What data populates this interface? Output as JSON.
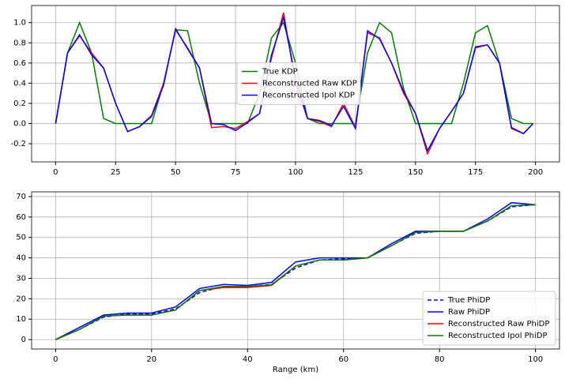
{
  "chart_data": [
    {
      "type": "line",
      "legend": "center",
      "grid": true,
      "xlim": [
        -10,
        210
      ],
      "xticks": [
        0,
        25,
        50,
        75,
        100,
        125,
        150,
        175,
        200
      ],
      "ylim": [
        -0.38,
        1.17
      ],
      "yticks": [
        -0.2,
        0.0,
        0.2,
        0.4,
        0.6,
        0.8,
        1.0
      ],
      "x": [
        0,
        5,
        10,
        15,
        20,
        25,
        30,
        35,
        40,
        45,
        50,
        55,
        60,
        65,
        70,
        75,
        80,
        85,
        90,
        95,
        100,
        105,
        110,
        115,
        120,
        125,
        130,
        135,
        140,
        145,
        150,
        155,
        160,
        165,
        170,
        175,
        180,
        185,
        190,
        195,
        199
      ],
      "series": [
        {
          "name": "True KDP",
          "color": "#008000",
          "values": [
            0,
            0.7,
            1.0,
            0.7,
            0.05,
            0,
            0,
            0,
            0,
            0.4,
            0.93,
            0.92,
            0.4,
            0,
            0,
            0,
            0,
            0.3,
            0.85,
            1.0,
            0.6,
            0.05,
            0,
            0,
            0,
            0,
            0.7,
            1.0,
            0.9,
            0.35,
            0,
            0,
            0,
            0,
            0.4,
            0.9,
            0.97,
            0.6,
            0.05,
            0,
            0
          ]
        },
        {
          "name": "Reconstructed Raw KDP",
          "color": "#ff0000",
          "values": [
            0,
            0.7,
            0.87,
            0.7,
            0.55,
            0.2,
            -0.08,
            -0.03,
            0.08,
            0.4,
            0.93,
            0.75,
            0.55,
            -0.04,
            -0.03,
            -0.05,
            0.02,
            0.1,
            0.65,
            1.1,
            0.4,
            0.05,
            0.02,
            -0.03,
            0.2,
            -0.04,
            0.9,
            0.85,
            0.6,
            0.3,
            0.1,
            -0.3,
            -0.05,
            0.12,
            0.3,
            0.75,
            0.78,
            0.6,
            -0.05,
            -0.1,
            0
          ]
        },
        {
          "name": "Reconstructed Ipol KDP",
          "color": "#0000ff",
          "values": [
            0,
            0.7,
            0.88,
            0.68,
            0.55,
            0.2,
            -0.08,
            -0.03,
            0.07,
            0.38,
            0.94,
            0.74,
            0.55,
            0.0,
            -0.01,
            -0.07,
            0.01,
            0.1,
            0.68,
            1.05,
            0.45,
            0.05,
            0.03,
            -0.02,
            0.17,
            -0.05,
            0.92,
            0.84,
            0.6,
            0.32,
            0.1,
            -0.27,
            -0.05,
            0.12,
            0.3,
            0.76,
            0.78,
            0.6,
            -0.04,
            -0.1,
            0
          ]
        }
      ]
    },
    {
      "type": "line",
      "legend": "lower right",
      "grid": true,
      "xlabel": "Range (km)",
      "xlim": [
        -5,
        105
      ],
      "xticks": [
        0,
        20,
        40,
        60,
        80,
        100
      ],
      "ylim": [
        -4.6,
        72.3
      ],
      "yticks": [
        0,
        10,
        20,
        30,
        40,
        50,
        60,
        70
      ],
      "x": [
        0,
        5,
        10,
        15,
        20,
        25,
        30,
        35,
        40,
        45,
        50,
        55,
        60,
        65,
        70,
        75,
        80,
        85,
        90,
        95,
        100
      ],
      "series": [
        {
          "name": "True PhiDP",
          "color": "#0000ff",
          "linestyle": "dashed",
          "values": [
            0,
            5,
            11,
            12.5,
            12.5,
            15,
            23,
            26,
            26,
            27,
            35,
            39,
            39.5,
            40,
            46,
            52,
            53,
            53,
            58,
            65,
            66
          ]
        },
        {
          "name": "Raw PhiDP",
          "color": "#0000ff",
          "values": [
            0,
            6,
            12,
            13,
            13,
            16,
            25,
            27,
            26.5,
            28,
            38,
            40,
            40,
            40,
            47,
            53,
            53,
            53,
            59,
            67,
            66
          ]
        },
        {
          "name": "Reconstructed Raw PhiDP",
          "color": "#ff0000",
          "values": [
            0,
            5,
            11.5,
            12,
            12,
            14.5,
            24,
            25.5,
            25.5,
            26.5,
            36,
            39,
            39,
            40,
            46,
            52.5,
            53,
            53,
            58,
            65.5,
            66
          ]
        },
        {
          "name": "Reconstructed Ipol PhiDP",
          "color": "#008000",
          "values": [
            0,
            5,
            11.5,
            12,
            12,
            14.5,
            24,
            26,
            26,
            26.8,
            36,
            39,
            39,
            40,
            46,
            52.5,
            53,
            53,
            58,
            65.5,
            66
          ]
        }
      ]
    }
  ]
}
